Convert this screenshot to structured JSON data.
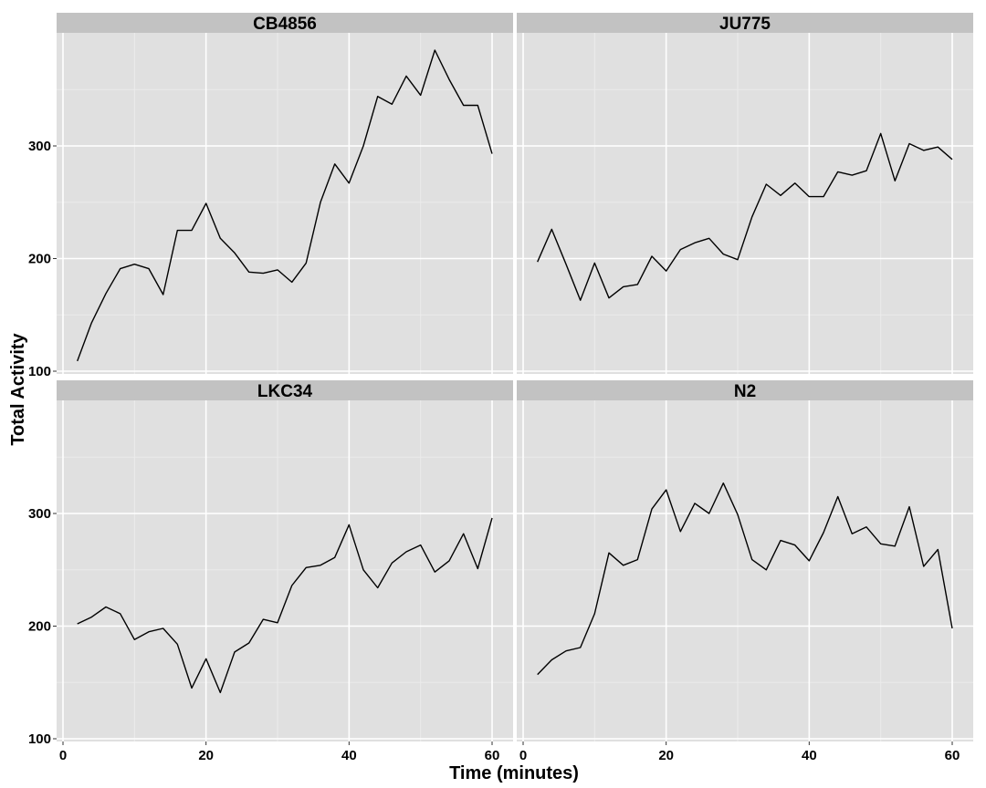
{
  "chart_data": {
    "type": "line",
    "xlabel": "Time (minutes)",
    "ylabel": "Total Activity",
    "xlim": [
      0,
      60
    ],
    "ylim": [
      100,
      400
    ],
    "x_ticks": [
      0,
      20,
      40,
      60
    ],
    "y_ticks": [
      100,
      200,
      300
    ],
    "grid": true,
    "layout": "2x2 facets, shared axes",
    "colors": {
      "panel_bg": "#E0E0E0",
      "strip_bg": "#C2C2C2",
      "grid_major": "#FFFFFF",
      "grid_minor": "#EBEBEB",
      "line": "#000000"
    },
    "x": [
      2,
      4,
      6,
      8,
      10,
      12,
      14,
      16,
      18,
      20,
      22,
      24,
      26,
      28,
      30,
      32,
      34,
      36,
      38,
      40,
      42,
      44,
      46,
      48,
      50,
      52,
      54,
      56,
      58,
      60
    ],
    "series": [
      {
        "name": "CB4856",
        "values": [
          109,
          143,
          169,
          191,
          195,
          191,
          168,
          225,
          225,
          249,
          218,
          205,
          188,
          187,
          190,
          179,
          196,
          250,
          284,
          267,
          300,
          344,
          337,
          362,
          345,
          385,
          359,
          336,
          336,
          293
        ]
      },
      {
        "name": "JU775",
        "values": [
          197,
          226,
          195,
          163,
          196,
          165,
          175,
          177,
          202,
          189,
          208,
          214,
          218,
          204,
          199,
          237,
          266,
          256,
          267,
          255,
          255,
          277,
          274,
          278,
          311,
          269,
          302,
          296,
          299,
          288
        ]
      },
      {
        "name": "LKC34",
        "values": [
          202,
          208,
          217,
          211,
          188,
          195,
          198,
          184,
          145,
          171,
          141,
          177,
          185,
          206,
          203,
          236,
          252,
          254,
          261,
          290,
          250,
          234,
          256,
          266,
          272,
          248,
          258,
          282,
          251,
          296
        ]
      },
      {
        "name": "N2",
        "values": [
          157,
          170,
          178,
          181,
          211,
          265,
          254,
          259,
          304,
          321,
          284,
          309,
          300,
          327,
          299,
          259,
          250,
          276,
          272,
          258,
          283,
          315,
          282,
          288,
          273,
          271,
          306,
          253,
          268,
          198
        ]
      }
    ]
  }
}
